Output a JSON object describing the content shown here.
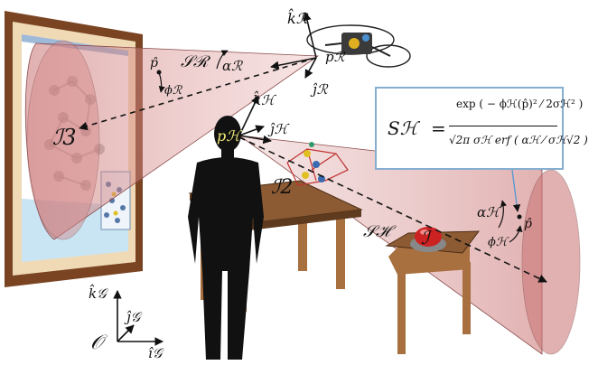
{
  "labels": {
    "S_R": "𝒮ℛ",
    "alpha_R": "αℛ",
    "phi_R": "ϕℛ",
    "p_R": "pℛ",
    "k_R": "k̂ℛ",
    "j_R": "ĵℛ",
    "p_hat_top": "p̂",
    "I3": "ℐ3",
    "p_H": "pℋ",
    "k_H": "k̂ℋ",
    "j_H": "ĵℋ",
    "I2": "ℐ2",
    "I1": "ℐ",
    "S_H": "𝒮ℋ",
    "alpha_H": "αℋ",
    "phi_H": "ϕℋ",
    "p_hat_right": "p̂",
    "k_G": "k̂𝒢",
    "j_G": "ĵ𝒢",
    "i_G": "î𝒢",
    "origin": "𝒪"
  },
  "formula": {
    "lhs": "Sℋ",
    "equals": "=",
    "numerator": "exp ( − ϕℋ(p̂)² ⁄ 2σℋ² )",
    "denominator": "√2π σℋ erf ( αℋ ⁄ σℋ√2 )"
  },
  "colors": {
    "cone_fill": "#d98c8c",
    "cone_stroke": "#8a4a4a",
    "frame": "#7a4423",
    "mat": "#f0d9b5",
    "table_top": "#8c5a33",
    "table_leg": "#a8703f",
    "silhouette": "#111111",
    "formula_border": "#86aed0",
    "button_red": "#cc2222",
    "label_yellow": "#f5f07a"
  }
}
